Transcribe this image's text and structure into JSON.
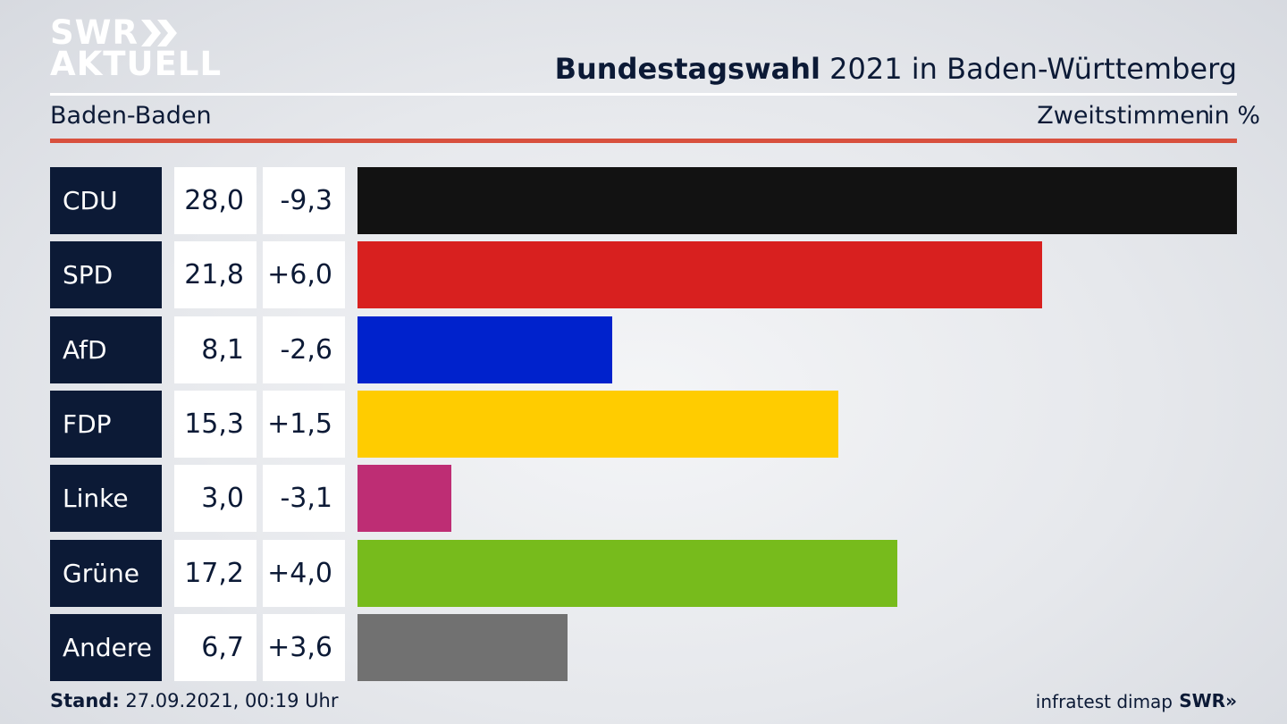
{
  "brand": {
    "line1": "SWR",
    "line2": "AKTUELL"
  },
  "header": {
    "title_bold": "Bundestagswahl",
    "title_rest": " 2021 in Baden-Württemberg",
    "region": "Baden-Baden",
    "vote_type": "Zweitstimmen",
    "unit": "in %"
  },
  "chart_data": {
    "type": "bar",
    "orientation": "horizontal",
    "categories": [
      "CDU",
      "SPD",
      "AfD",
      "FDP",
      "Linke",
      "Grüne",
      "Andere"
    ],
    "values": [
      28.0,
      21.8,
      8.1,
      15.3,
      3.0,
      17.2,
      6.7
    ],
    "value_labels": [
      "28,0",
      "21,8",
      "8,1",
      "15,3",
      "3,0",
      "17,2",
      "6,7"
    ],
    "changes": [
      -9.3,
      6.0,
      -2.6,
      1.5,
      -3.1,
      4.0,
      3.6
    ],
    "change_labels": [
      "-9,3",
      "+6,0",
      "-2,6",
      "+1,5",
      "-3,1",
      "+4,0",
      "+3,6"
    ],
    "colors": [
      "#121212",
      "#d8201f",
      "#0022cc",
      "#ffcc00",
      "#be2d74",
      "#77bb1c",
      "#717171"
    ],
    "xlim": [
      0,
      28.0
    ],
    "grid": false
  },
  "footer": {
    "stand_label": "Stand:",
    "stand_value": " 27.09.2021, 00:19 Uhr",
    "source": "infratest dimap",
    "swr": "SWR"
  }
}
